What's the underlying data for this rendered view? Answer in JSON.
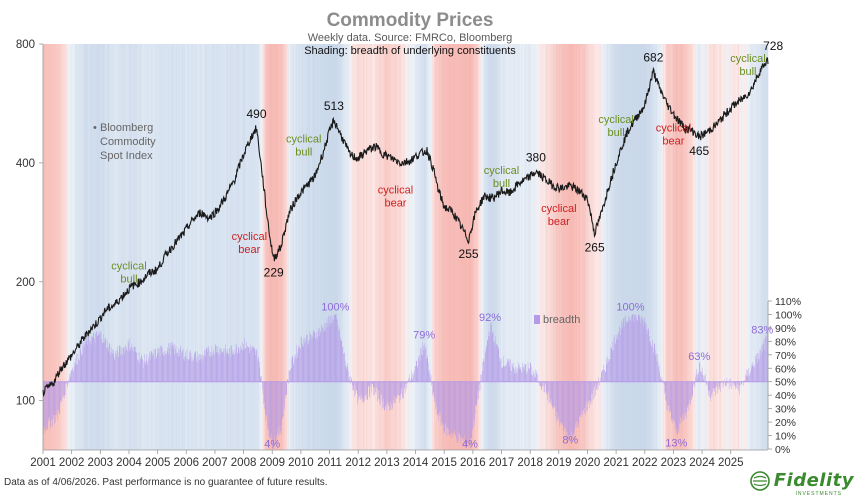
{
  "chart_data": {
    "type": "line",
    "title": "Commodity Prices",
    "subtitle": "Weekly data.  Source: FMRCo, Bloomberg",
    "shading_note": "Shading: breadth of underlying constituents",
    "series_label": "Bloomberg Commodity Spot Index",
    "legend": {
      "label": "breadth",
      "color": "#b49ae8"
    },
    "x_ticks": [
      "2001",
      "2002",
      "2003",
      "2004",
      "2005",
      "2006",
      "2007",
      "2008",
      "2009",
      "2010",
      "2011",
      "2012",
      "2013",
      "2014",
      "2015",
      "2016",
      "2017",
      "2018",
      "2019",
      "2020",
      "2021",
      "2022",
      "2023",
      "2024",
      "2025"
    ],
    "xlim": [
      2001.0,
      2026.3
    ],
    "y_left": {
      "scale": "log",
      "ticks": [
        100,
        200,
        400,
        800
      ],
      "ylim": [
        75,
        800
      ]
    },
    "y_right": {
      "ticks": [
        "0%",
        "10%",
        "20%",
        "30%",
        "40%",
        "50%",
        "60%",
        "70%",
        "80%",
        "90%",
        "100%",
        "110%"
      ],
      "ylim": [
        0,
        110
      ]
    },
    "series": [
      {
        "values": [
          [
            2001.0,
            105
          ],
          [
            2001.2,
            108
          ],
          [
            2001.4,
            112
          ],
          [
            2001.6,
            120
          ],
          [
            2001.8,
            125
          ],
          [
            2002.0,
            130
          ],
          [
            2002.3,
            140
          ],
          [
            2002.6,
            150
          ],
          [
            2002.9,
            158
          ],
          [
            2003.2,
            170
          ],
          [
            2003.5,
            175
          ],
          [
            2003.8,
            185
          ],
          [
            2004.1,
            195
          ],
          [
            2004.4,
            200
          ],
          [
            2004.7,
            210
          ],
          [
            2005.0,
            215
          ],
          [
            2005.3,
            235
          ],
          [
            2005.6,
            250
          ],
          [
            2005.9,
            265
          ],
          [
            2006.2,
            285
          ],
          [
            2006.5,
            300
          ],
          [
            2006.8,
            290
          ],
          [
            2007.1,
            305
          ],
          [
            2007.4,
            330
          ],
          [
            2007.7,
            365
          ],
          [
            2008.0,
            420
          ],
          [
            2008.3,
            470
          ],
          [
            2008.45,
            490
          ],
          [
            2008.6,
            400
          ],
          [
            2008.8,
            300
          ],
          [
            2008.95,
            250
          ],
          [
            2009.05,
            229
          ],
          [
            2009.3,
            245
          ],
          [
            2009.6,
            300
          ],
          [
            2009.9,
            330
          ],
          [
            2010.2,
            350
          ],
          [
            2010.5,
            370
          ],
          [
            2010.8,
            430
          ],
          [
            2011.0,
            480
          ],
          [
            2011.15,
            513
          ],
          [
            2011.4,
            470
          ],
          [
            2011.7,
            420
          ],
          [
            2012.0,
            410
          ],
          [
            2012.3,
            430
          ],
          [
            2012.6,
            440
          ],
          [
            2012.9,
            420
          ],
          [
            2013.2,
            410
          ],
          [
            2013.5,
            400
          ],
          [
            2013.8,
            405
          ],
          [
            2014.1,
            420
          ],
          [
            2014.4,
            430
          ],
          [
            2014.6,
            390
          ],
          [
            2014.8,
            340
          ],
          [
            2015.0,
            310
          ],
          [
            2015.3,
            300
          ],
          [
            2015.6,
            275
          ],
          [
            2015.85,
            255
          ],
          [
            2016.1,
            300
          ],
          [
            2016.4,
            330
          ],
          [
            2016.7,
            325
          ],
          [
            2017.0,
            340
          ],
          [
            2017.3,
            335
          ],
          [
            2017.6,
            355
          ],
          [
            2017.9,
            365
          ],
          [
            2018.2,
            380
          ],
          [
            2018.5,
            365
          ],
          [
            2018.8,
            350
          ],
          [
            2019.1,
            345
          ],
          [
            2019.4,
            350
          ],
          [
            2019.7,
            340
          ],
          [
            2020.0,
            325
          ],
          [
            2020.1,
            300
          ],
          [
            2020.25,
            265
          ],
          [
            2020.5,
            300
          ],
          [
            2020.8,
            360
          ],
          [
            2021.1,
            420
          ],
          [
            2021.4,
            480
          ],
          [
            2021.7,
            520
          ],
          [
            2022.0,
            560
          ],
          [
            2022.2,
            640
          ],
          [
            2022.3,
            682
          ],
          [
            2022.5,
            620
          ],
          [
            2022.8,
            560
          ],
          [
            2023.1,
            520
          ],
          [
            2023.4,
            490
          ],
          [
            2023.7,
            480
          ],
          [
            2023.9,
            465
          ],
          [
            2024.2,
            480
          ],
          [
            2024.5,
            500
          ],
          [
            2024.8,
            530
          ],
          [
            2025.1,
            560
          ],
          [
            2025.4,
            580
          ],
          [
            2025.7,
            610
          ],
          [
            2026.0,
            680
          ],
          [
            2026.27,
            728
          ]
        ]
      },
      {
        "name": "breadth",
        "values": [
          [
            2001.0,
            15
          ],
          [
            2001.5,
            25
          ],
          [
            2002.0,
            60
          ],
          [
            2002.5,
            80
          ],
          [
            2003.0,
            85
          ],
          [
            2003.5,
            70
          ],
          [
            2004.0,
            78
          ],
          [
            2004.5,
            65
          ],
          [
            2005.0,
            72
          ],
          [
            2005.5,
            75
          ],
          [
            2006.0,
            70
          ],
          [
            2006.5,
            68
          ],
          [
            2007.0,
            75
          ],
          [
            2007.5,
            72
          ],
          [
            2008.0,
            78
          ],
          [
            2008.5,
            70
          ],
          [
            2008.8,
            20
          ],
          [
            2009.0,
            4
          ],
          [
            2009.3,
            15
          ],
          [
            2009.6,
            60
          ],
          [
            2010.0,
            80
          ],
          [
            2010.5,
            85
          ],
          [
            2011.0,
            95
          ],
          [
            2011.2,
            100
          ],
          [
            2011.6,
            60
          ],
          [
            2012.0,
            35
          ],
          [
            2012.5,
            45
          ],
          [
            2013.0,
            30
          ],
          [
            2013.5,
            40
          ],
          [
            2014.0,
            60
          ],
          [
            2014.3,
            79
          ],
          [
            2014.7,
            30
          ],
          [
            2015.0,
            15
          ],
          [
            2015.5,
            8
          ],
          [
            2015.9,
            4
          ],
          [
            2016.3,
            55
          ],
          [
            2016.6,
            92
          ],
          [
            2017.0,
            65
          ],
          [
            2017.5,
            60
          ],
          [
            2018.0,
            60
          ],
          [
            2018.5,
            45
          ],
          [
            2019.0,
            20
          ],
          [
            2019.4,
            8
          ],
          [
            2019.8,
            25
          ],
          [
            2020.2,
            40
          ],
          [
            2020.6,
            60
          ],
          [
            2021.0,
            85
          ],
          [
            2021.5,
            100
          ],
          [
            2022.0,
            95
          ],
          [
            2022.4,
            70
          ],
          [
            2022.8,
            30
          ],
          [
            2023.1,
            13
          ],
          [
            2023.5,
            30
          ],
          [
            2023.9,
            63
          ],
          [
            2024.3,
            40
          ],
          [
            2024.8,
            50
          ],
          [
            2025.3,
            45
          ],
          [
            2025.7,
            60
          ],
          [
            2026.0,
            70
          ],
          [
            2026.27,
            83
          ]
        ]
      }
    ],
    "annotations": {
      "numbers": [
        {
          "text": "490",
          "x": 2008.45,
          "y": 490
        },
        {
          "text": "229",
          "x": 2009.05,
          "y": 229
        },
        {
          "text": "513",
          "x": 2011.15,
          "y": 513
        },
        {
          "text": "255",
          "x": 2015.85,
          "y": 255
        },
        {
          "text": "380",
          "x": 2018.2,
          "y": 380
        },
        {
          "text": "265",
          "x": 2020.25,
          "y": 265
        },
        {
          "text": "682",
          "x": 2022.3,
          "y": 682
        },
        {
          "text": "465",
          "x": 2023.9,
          "y": 465
        },
        {
          "text": "728",
          "x": 2026.27,
          "y": 728
        }
      ],
      "phases": [
        {
          "text": [
            "cyclical",
            "bull"
          ],
          "kind": "bull",
          "x": 2004.0,
          "y": 215
        },
        {
          "text": [
            "cyclical",
            "bear"
          ],
          "kind": "bear",
          "x": 2008.2,
          "y": 255
        },
        {
          "text": [
            "cyclical",
            "bull"
          ],
          "kind": "bull",
          "x": 2010.1,
          "y": 450
        },
        {
          "text": [
            "cyclical",
            "bear"
          ],
          "kind": "bear",
          "x": 2013.3,
          "y": 335
        },
        {
          "text": [
            "cyclical",
            "bull"
          ],
          "kind": "bull",
          "x": 2017.0,
          "y": 375
        },
        {
          "text": [
            "cyclical",
            "bear"
          ],
          "kind": "bear",
          "x": 2019.0,
          "y": 300
        },
        {
          "text": [
            "cyclical",
            "bull"
          ],
          "kind": "bull",
          "x": 2021.0,
          "y": 505
        },
        {
          "text": [
            "cyclical",
            "bear"
          ],
          "kind": "bear",
          "x": 2023.0,
          "y": 480
        },
        {
          "text": [
            "cyclical",
            "bull"
          ],
          "kind": "bull",
          "x": 2025.6,
          "y": 720
        }
      ],
      "percents": [
        {
          "text": "4%",
          "x": 2009.0,
          "y": 1
        },
        {
          "text": "100%",
          "x": 2011.2,
          "y": 103
        },
        {
          "text": "79%",
          "x": 2014.3,
          "y": 82
        },
        {
          "text": "4%",
          "x": 2015.9,
          "y": 1
        },
        {
          "text": "92%",
          "x": 2016.6,
          "y": 95
        },
        {
          "text": "8%",
          "x": 2019.4,
          "y": 4
        },
        {
          "text": "100%",
          "x": 2021.5,
          "y": 103
        },
        {
          "text": "13%",
          "x": 2023.1,
          "y": 2
        },
        {
          "text": "63%",
          "x": 2023.9,
          "y": 66
        },
        {
          "text": "83%",
          "x": 2026.1,
          "y": 86
        }
      ]
    },
    "colors": {
      "line": "#1a1a1a",
      "bars": "#b49ae8",
      "bull_shade": "#c8d7ea",
      "bear_shade": "#f6b6b0"
    }
  },
  "series_label_lines": [
    "Bloomberg",
    "Commodity",
    "Spot Index"
  ],
  "footer": "Data as of 4/06/2026. Past performance is no guarantee of future results.",
  "brand": {
    "name": "Fidelity",
    "sub": "INVESTMENTS",
    "icon": "fidelity-globe-icon"
  }
}
